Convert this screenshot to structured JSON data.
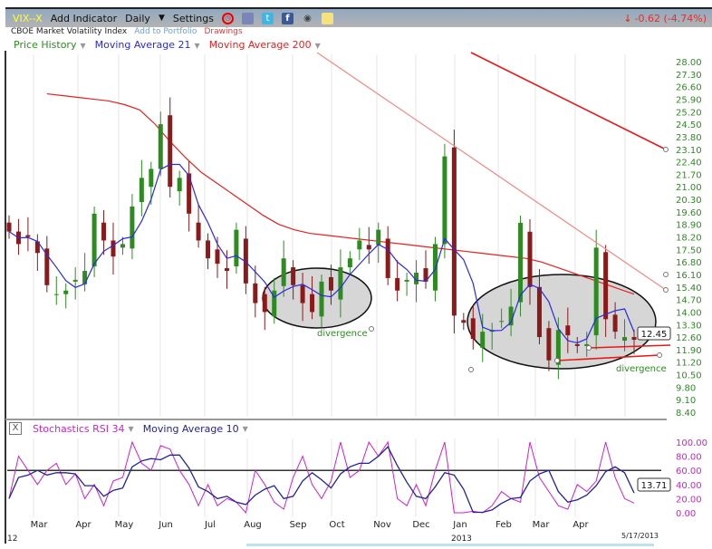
{
  "toolbar": {
    "symbol": "VIX--X",
    "add_indicator": "Add Indicator",
    "period": "Daily",
    "settings": "Settings",
    "change": "-0.62 (-4.74%)",
    "icons": [
      "alarm-icon",
      "book-icon",
      "twitter-icon",
      "facebook-icon",
      "camera-icon",
      "note-icon"
    ]
  },
  "subtitle": {
    "name": "CBOE Market Volatility Index",
    "add_portfolio": "Add to Portfolio",
    "drawings": "Drawings"
  },
  "legend": {
    "price": "Price History",
    "ma21": "Moving Average 21",
    "ma200": "Moving Average 200"
  },
  "lower_legend": {
    "close": "X",
    "srsi": "Stochastics RSI 34",
    "ma10": "Moving Average 10"
  },
  "annotations": {
    "div1": "divergence",
    "div2": "divergence",
    "last_price": "12.45",
    "last_srsi": "13.71",
    "date": "5/17/2013",
    "year_left": "12",
    "year_mid": "2013"
  },
  "colors": {
    "up": "#2e8b22",
    "down": "#8b1a1a",
    "ma21": "#2a2ae0",
    "ma200": "#e82020",
    "srsi": "#cc22cc",
    "ma10": "#22229a",
    "axis": "#2e8b22"
  },
  "chart_data": [
    {
      "type": "candlestick",
      "title": "VIX--X",
      "ylim": [
        8.4,
        28.0
      ],
      "y_ticks": [
        "28.00",
        "27.30",
        "26.60",
        "25.90",
        "25.20",
        "24.50",
        "23.80",
        "23.10",
        "22.40",
        "21.70",
        "21.00",
        "20.30",
        "19.60",
        "18.90",
        "18.20",
        "17.50",
        "16.80",
        "16.10",
        "15.40",
        "14.70",
        "14.00",
        "13.30",
        "12.60",
        "11.90",
        "11.20",
        "10.50",
        "9.80",
        "9.10",
        "8.40"
      ],
      "x_ticks": [
        "Mar",
        "Apr",
        "May",
        "Jun",
        "Jul",
        "Aug",
        "Sep",
        "Oct",
        "Nov",
        "Dec",
        "Jan",
        "Feb",
        "Mar",
        "Apr"
      ],
      "closes": [
        18.5,
        17.8,
        18.2,
        17.3,
        15.5,
        15.0,
        15.2,
        15.8,
        16.3,
        19.5,
        18.0,
        17.1,
        17.8,
        19.9,
        21.5,
        22.0,
        24.5,
        21.0,
        21.5,
        19.5,
        18.0,
        17.0,
        16.7,
        16.3,
        18.6,
        15.6,
        14.5,
        14.0,
        15.2,
        17.0,
        15.5,
        14.5,
        14.0,
        15.7,
        15.2,
        16.5,
        17.0,
        18.0,
        17.5,
        18.6,
        15.9,
        15.2,
        15.8,
        16.2,
        15.7,
        17.8,
        22.7,
        13.8,
        13.4,
        12.5,
        12.9,
        13.0,
        13.5,
        14.3,
        18.99,
        15.4,
        12.6,
        11.3,
        13.0,
        12.7,
        12.1,
        12.2,
        17.6,
        13.6,
        12.9,
        12.6,
        12.45
      ],
      "ma200": [
        26.2,
        26.1,
        26.0,
        25.9,
        25.8,
        25.6,
        25.3,
        24.5,
        23.5,
        22.6,
        21.8,
        21.2,
        20.6,
        20.0,
        19.4,
        18.9,
        18.6,
        18.4,
        18.3,
        18.2,
        18.1,
        18.0,
        17.9,
        17.8,
        17.7,
        17.6,
        17.5,
        17.4,
        17.3,
        17.2,
        17.1,
        17.0,
        16.8,
        16.5,
        16.2,
        15.9,
        15.6,
        15.3,
        15.0
      ]
    },
    {
      "type": "line",
      "title": "Stochastics RSI 34",
      "ylim": [
        0,
        100
      ],
      "y_ticks": [
        "100.00",
        "80.00",
        "60.00",
        "40.00",
        "20.00",
        "0.00"
      ],
      "reference_line": 60,
      "values": [
        20,
        80,
        60,
        40,
        60,
        70,
        40,
        55,
        20,
        40,
        10,
        45,
        50,
        100,
        70,
        60,
        95,
        90,
        60,
        40,
        10,
        40,
        10,
        20,
        15,
        0,
        60,
        40,
        15,
        5,
        50,
        80,
        40,
        20,
        45,
        100,
        50,
        60,
        100,
        80,
        100,
        20,
        10,
        40,
        10,
        60,
        100,
        0,
        0,
        2,
        0,
        10,
        30,
        20,
        15,
        100,
        50,
        30,
        10,
        5,
        40,
        30,
        45,
        100,
        50,
        20,
        13.71
      ]
    }
  ]
}
